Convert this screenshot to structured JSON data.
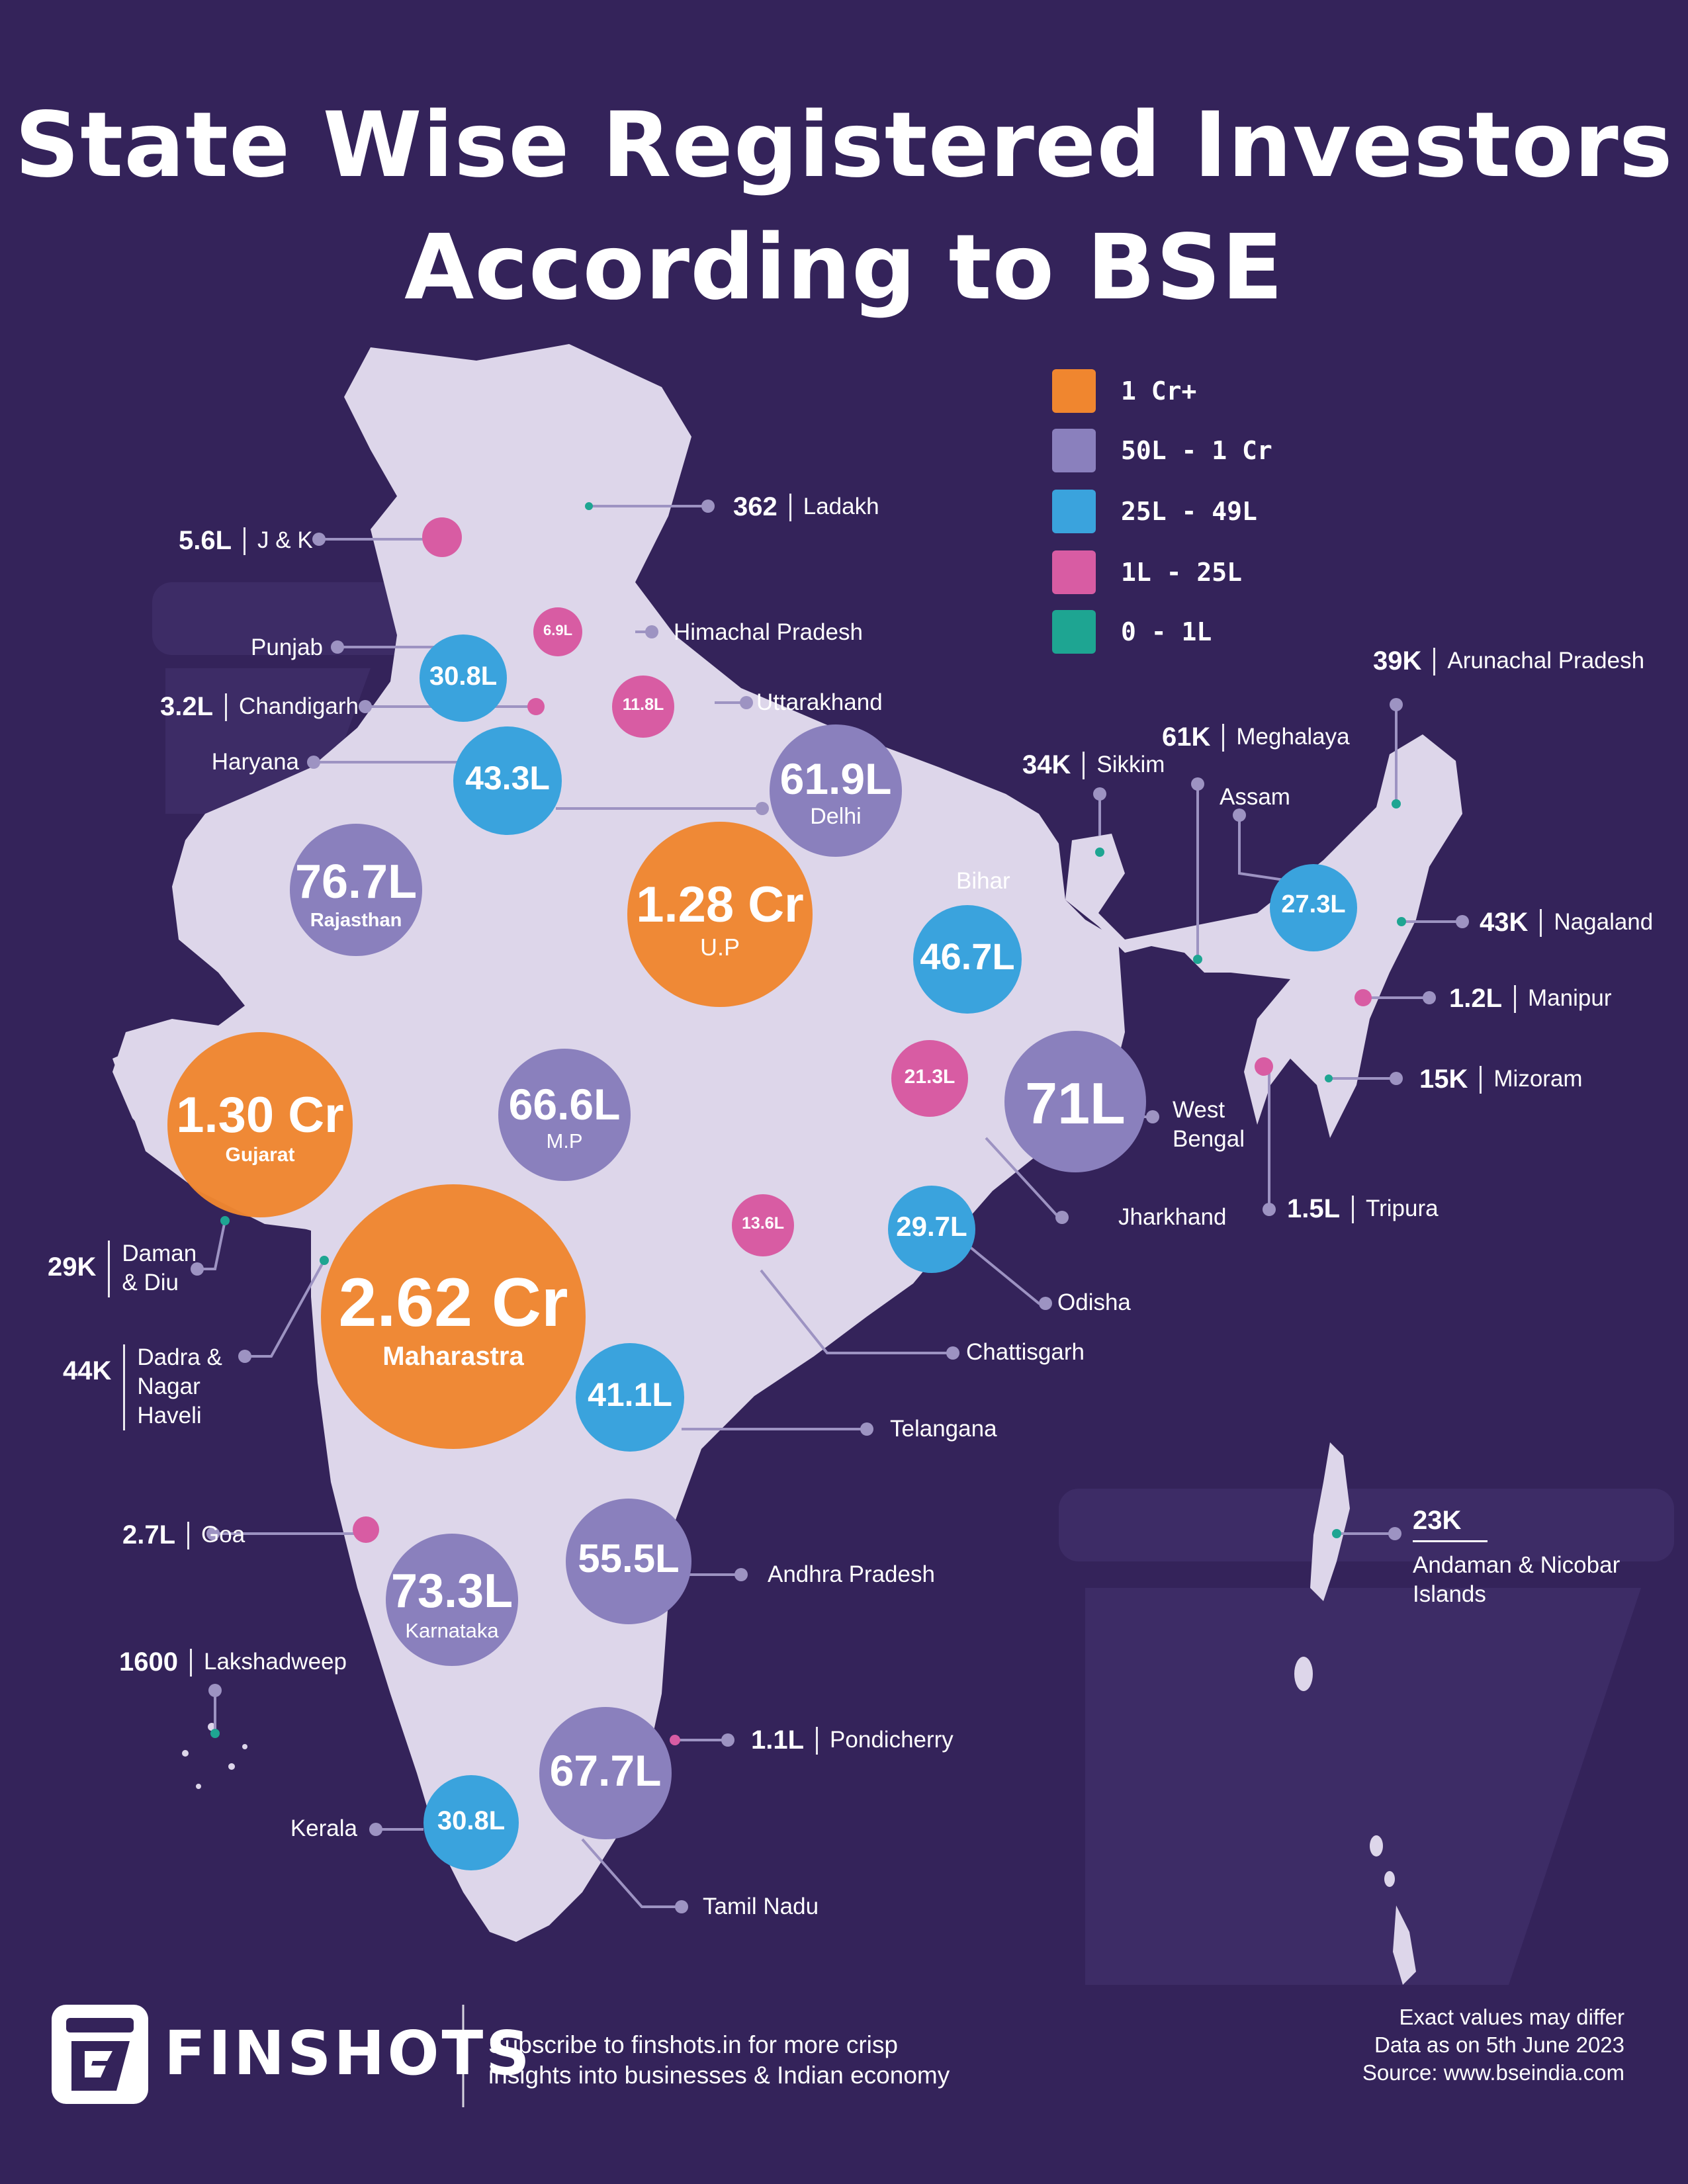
{
  "title": {
    "line1": "State Wise Registered Investors",
    "line2": "According to BSE"
  },
  "colors": {
    "background": "#34235a",
    "map": "#ddd6ea",
    "cr": "#f0862f",
    "l50": "#8a80bd",
    "l25": "#3aa3dd",
    "l1": "#d85ca3",
    "l0": "#1ea592",
    "leader": "#9d93c2"
  },
  "legend": [
    {
      "label": "1 Cr+",
      "color": "#f0862f"
    },
    {
      "label": "50L - 1 Cr",
      "color": "#8a80bd"
    },
    {
      "label": "25L - 49L",
      "color": "#3aa3dd"
    },
    {
      "label": "1L - 25L",
      "color": "#d85ca3"
    },
    {
      "label": "0 - 1L",
      "color": "#1ea592"
    }
  ],
  "bubbles": {
    "maharashtra": {
      "value": "2.62 Cr",
      "name": "Maharastra"
    },
    "gujarat": {
      "value": "1.30 Cr",
      "name": "Gujarat"
    },
    "up": {
      "value": "1.28 Cr",
      "name": "U.P"
    },
    "rajasthan": {
      "value": "76.7L",
      "name": "Rajasthan"
    },
    "karnataka": {
      "value": "73.3L",
      "name": "Karnataka"
    },
    "west_bengal": {
      "value": "71L"
    },
    "tamil_nadu": {
      "value": "67.7L"
    },
    "mp": {
      "value": "66.6L",
      "name": "M.P"
    },
    "delhi": {
      "value": "61.9L",
      "name": "Delhi"
    },
    "andhra": {
      "value": "55.5L"
    },
    "bihar": {
      "value": "46.7L"
    },
    "haryana": {
      "value": "43.3L"
    },
    "telangana": {
      "value": "41.1L"
    },
    "punjab": {
      "value": "30.8L"
    },
    "kerala": {
      "value": "30.8L"
    },
    "odisha": {
      "value": "29.7L"
    },
    "assam": {
      "value": "27.3L"
    },
    "jharkhand": {
      "value": "21.3L"
    },
    "chhattisgarh": {
      "value": "13.6L"
    },
    "uttarakhand": {
      "value": "11.8L"
    },
    "himachal": {
      "value": "6.9L"
    }
  },
  "labels": {
    "ladakh": {
      "value": "362",
      "name": "Ladakh"
    },
    "jk": {
      "value": "5.6L",
      "name": "J & K"
    },
    "himachal": {
      "name": "Himachal Pradesh"
    },
    "punjab": {
      "name": "Punjab"
    },
    "chandigarh": {
      "value": "3.2L",
      "name": "Chandigarh"
    },
    "uttarakhand": {
      "name": "Uttarakhand"
    },
    "haryana": {
      "name": "Haryana"
    },
    "arunachal": {
      "value": "39K",
      "name": "Arunachal Pradesh"
    },
    "meghalaya": {
      "value": "61K",
      "name": "Meghalaya"
    },
    "sikkim": {
      "value": "34K",
      "name": "Sikkim"
    },
    "assam": {
      "name": "Assam"
    },
    "bihar": {
      "name": "Bihar"
    },
    "nagaland": {
      "value": "43K",
      "name": "Nagaland"
    },
    "manipur": {
      "value": "1.2L",
      "name": "Manipur"
    },
    "mizoram": {
      "value": "15K",
      "name": "Mizoram"
    },
    "west_bengal": {
      "name": "West Bengal"
    },
    "tripura": {
      "value": "1.5L",
      "name": "Tripura"
    },
    "jharkhand": {
      "name": "Jharkhand"
    },
    "odisha": {
      "name": "Odisha"
    },
    "chhattisgarh": {
      "name": "Chattisgarh"
    },
    "telangana": {
      "name": "Telangana"
    },
    "daman": {
      "value": "29K",
      "name": "Daman & Diu"
    },
    "dadra": {
      "value": "44K",
      "name": "Dadra & Nagar Haveli"
    },
    "andaman": {
      "value": "23K",
      "name": "Andaman & Nicobar Islands"
    },
    "goa": {
      "value": "2.7L",
      "name": "Goa"
    },
    "andhra": {
      "name": "Andhra Pradesh"
    },
    "lakshadweep": {
      "value": "1600",
      "name": "Lakshadweep"
    },
    "pondicherry": {
      "value": "1.1L",
      "name": "Pondicherry"
    },
    "kerala": {
      "name": "Kerala"
    },
    "tamil_nadu": {
      "name": "Tamil Nadu"
    }
  },
  "brand": {
    "name": "FINSHOTS",
    "logo_icon": "finshots-logo-icon"
  },
  "tagline": {
    "line1": "Subscribe to finshots.in for more crisp",
    "line2": "insights into businesses & Indian economy"
  },
  "notes": {
    "line1": "Exact values may differ",
    "line2": "Data as on 5th June 2023",
    "line3": "Source:  www.bseindia.com"
  }
}
